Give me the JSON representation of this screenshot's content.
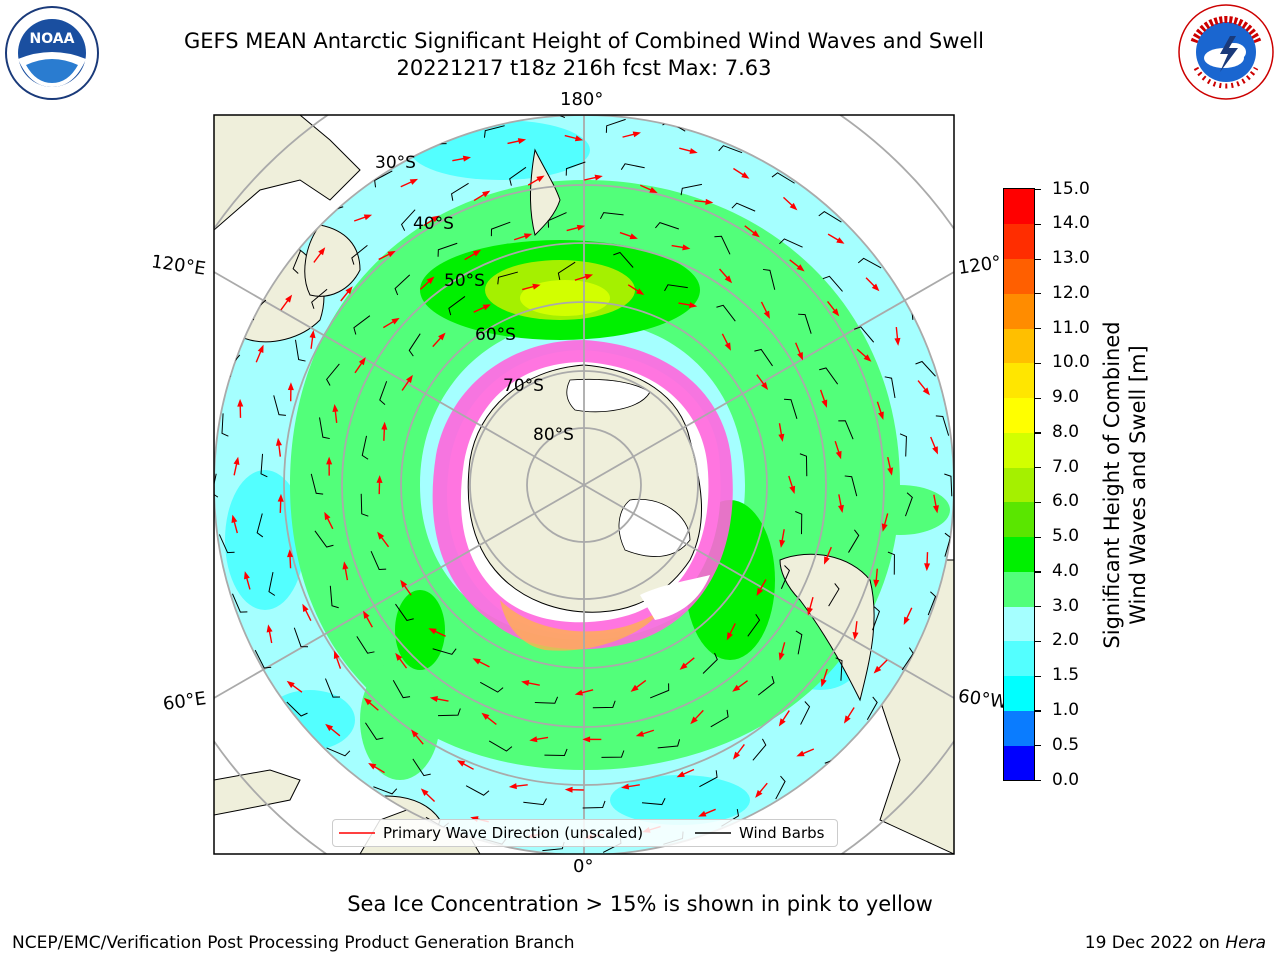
{
  "title": {
    "line1": "GEFS MEAN Antarctic Significant Height of Combined Wind Waves and Swell",
    "line2": "20221217 t18z 216h fcst   Max: 7.63"
  },
  "logos": {
    "left": "NOAA",
    "right": "NATIONAL WEATHER SERVICE"
  },
  "map": {
    "lon_labels": [
      "180°",
      "0°",
      "120°E",
      "60°E",
      "120°",
      "60°W"
    ],
    "lat_labels": [
      "30°S",
      "40°S",
      "50°S",
      "60°S",
      "70°S",
      "80°S"
    ]
  },
  "legend": {
    "wave_label": "Primary Wave Direction (unscaled)",
    "wind_label": "Wind Barbs",
    "wave_color": "#ff0000",
    "wind_color": "#000000"
  },
  "colorbar": {
    "label": "Significant Height of Combined\nWind Waves and Swell [m]",
    "ticks": [
      "0.0",
      "0.5",
      "1.0",
      "1.5",
      "2.0",
      "3.0",
      "4.0",
      "5.0",
      "6.0",
      "7.0",
      "8.0",
      "9.0",
      "10.0",
      "11.0",
      "12.0",
      "13.0",
      "14.0",
      "15.0"
    ],
    "colors": [
      "#0000ff",
      "#0a7cff",
      "#00ffff",
      "#53ffff",
      "#a5ffff",
      "#52ff7a",
      "#00f000",
      "#5ae600",
      "#a5f000",
      "#d2ff00",
      "#ffff00",
      "#ffe600",
      "#ffbf00",
      "#ff8c00",
      "#ff5f00",
      "#ff2d00",
      "#ff0000"
    ]
  },
  "note": "Sea Ice Concentration > 15% is shown in pink to yellow",
  "footer": {
    "left": "NCEP/EMC/Verification Post Processing Product Generation Branch",
    "date": "19 Dec 2022 on",
    "host": "Hera"
  }
}
